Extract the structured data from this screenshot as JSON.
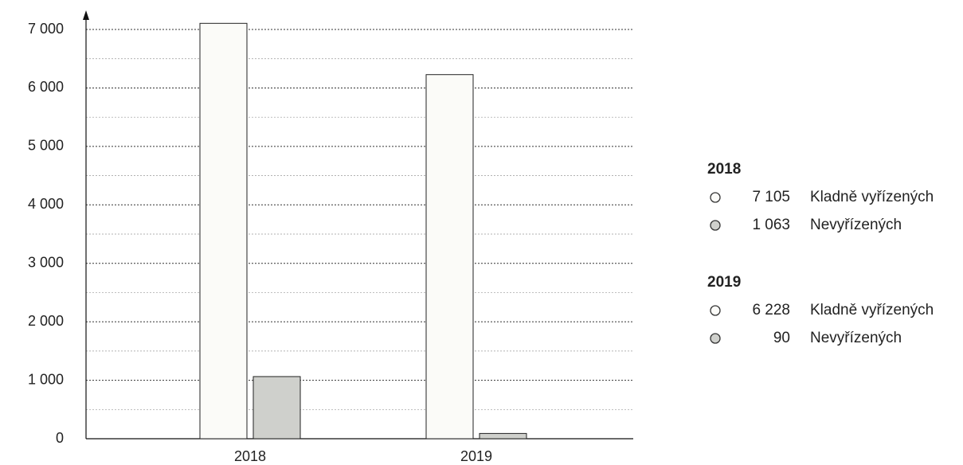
{
  "chart_data": {
    "type": "bar",
    "categories": [
      "2018",
      "2019"
    ],
    "series": [
      {
        "name": "Kladně vyřízených",
        "color": "#fbfbf8",
        "values": [
          7105,
          6228
        ],
        "value_labels": [
          "7 105",
          "6 228"
        ]
      },
      {
        "name": "Nevyřízených",
        "color": "#cfd0cc",
        "values": [
          1063,
          90
        ],
        "value_labels": [
          "1 063",
          "90"
        ]
      }
    ],
    "ylim": [
      0,
      7300
    ],
    "yticks": [
      0,
      {
        "value": 1000,
        "label": "1 000"
      },
      {
        "value": 2000,
        "label": "2 000"
      },
      {
        "value": 3000,
        "label": "3 000"
      },
      {
        "value": 4000,
        "label": "4 000"
      },
      {
        "value": 5000,
        "label": "5 000"
      },
      {
        "value": 6000,
        "label": "6 000"
      },
      {
        "value": 7000,
        "label": "7  000"
      }
    ],
    "minor_yticks": [
      500,
      1500,
      2500,
      3500,
      4500,
      5500,
      6500
    ],
    "grid": true
  }
}
